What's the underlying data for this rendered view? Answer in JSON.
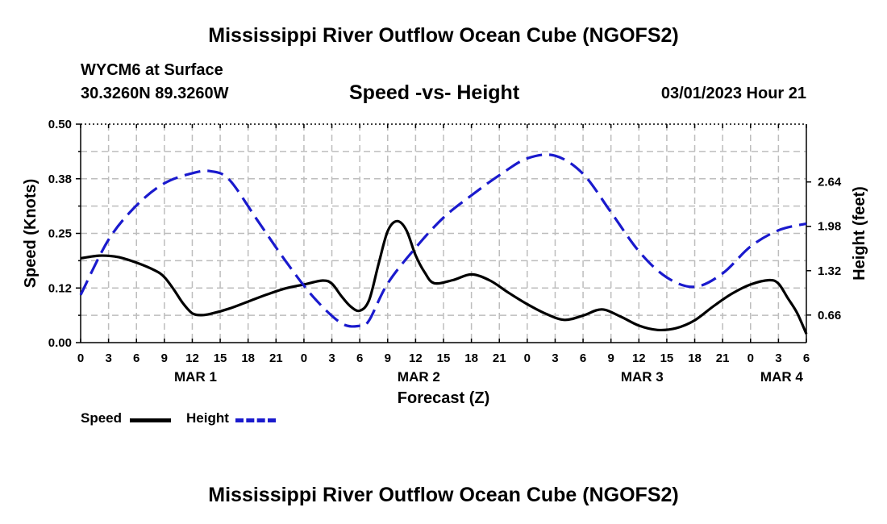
{
  "header": {
    "title": "Mississippi River Outflow Ocean Cube (NGOFS2)",
    "station": "WYCM6 at Surface",
    "coords": "30.3260N  89.3260W",
    "datetime": "03/01/2023 Hour 21"
  },
  "footer": {
    "title": "Mississippi River Outflow Ocean Cube (NGOFS2)"
  },
  "legend": {
    "speed_label": "Speed",
    "height_label": "Height",
    "speed_color": "#000000",
    "height_color": "#1a1acd"
  },
  "chart_data": {
    "type": "line",
    "title": "Speed -vs- Height",
    "xlabel": "Forecast (Z)",
    "ylabel": "Speed (Knots)",
    "y2label": "Height (feet)",
    "x_unit": "hours since MAR 1 00Z",
    "xlim": [
      0,
      78
    ],
    "ylim": [
      0,
      0.5
    ],
    "y2lim": [
      0.25,
      3.5
    ],
    "x_ticks": [
      0,
      3,
      6,
      9,
      12,
      15,
      18,
      21,
      24,
      27,
      30,
      33,
      36,
      39,
      42,
      45,
      48,
      51,
      54,
      57,
      60,
      63,
      66,
      69,
      72,
      75,
      78
    ],
    "x_tick_labels": [
      "0",
      "3",
      "6",
      "9",
      "12",
      "15",
      "18",
      "21",
      "0",
      "3",
      "6",
      "9",
      "12",
      "15",
      "18",
      "21",
      "0",
      "3",
      "6",
      "9",
      "12",
      "15",
      "18",
      "21",
      "0",
      "3",
      "6"
    ],
    "y_ticks": [
      0.0,
      0.125,
      0.25,
      0.375,
      0.5
    ],
    "y_tick_labels": [
      "0.00",
      "0.12",
      "0.25",
      "0.38",
      "0.50"
    ],
    "y2_ticks": [
      0.66,
      1.32,
      1.98,
      2.64
    ],
    "y2_tick_labels": [
      "0.66",
      "1.32",
      "1.98",
      "2.64"
    ],
    "day_labels": [
      {
        "x": 12,
        "label": "MAR 1"
      },
      {
        "x": 36,
        "label": "MAR 2"
      },
      {
        "x": 60,
        "label": "MAR 3"
      },
      {
        "x": 75,
        "label": "MAR 4"
      }
    ],
    "grid": true,
    "series": [
      {
        "name": "Speed",
        "axis": "left",
        "color": "#000000",
        "dash": "solid",
        "x": [
          0,
          2,
          4,
          6,
          8,
          9,
          10,
          11,
          12,
          13,
          14,
          16,
          18,
          20,
          22,
          24,
          26,
          27,
          28,
          29,
          30,
          31,
          32,
          33,
          34,
          35,
          36,
          37,
          38,
          40,
          42,
          44,
          46,
          48,
          50,
          52,
          54,
          56,
          58,
          60,
          62,
          64,
          66,
          68,
          70,
          72,
          74,
          75,
          76,
          77,
          78
        ],
        "values": [
          0.193,
          0.199,
          0.196,
          0.183,
          0.165,
          0.15,
          0.122,
          0.09,
          0.067,
          0.063,
          0.066,
          0.078,
          0.094,
          0.11,
          0.124,
          0.133,
          0.142,
          0.135,
          0.107,
          0.083,
          0.073,
          0.097,
          0.178,
          0.255,
          0.278,
          0.258,
          0.2,
          0.16,
          0.136,
          0.143,
          0.156,
          0.142,
          0.114,
          0.088,
          0.066,
          0.052,
          0.062,
          0.076,
          0.06,
          0.039,
          0.029,
          0.033,
          0.051,
          0.083,
          0.112,
          0.133,
          0.143,
          0.135,
          0.102,
          0.068,
          0.02
        ]
      },
      {
        "name": "Height",
        "axis": "right",
        "color": "#1a1acd",
        "dash": "dashed",
        "x": [
          0,
          3,
          6,
          9,
          12,
          14,
          16,
          19,
          22,
          25,
          28,
          30,
          31,
          33,
          36,
          39,
          42,
          45,
          48,
          51,
          54,
          57,
          60,
          63,
          66,
          69,
          72,
          75,
          78
        ],
        "values": [
          0.96,
          1.78,
          2.29,
          2.62,
          2.77,
          2.8,
          2.67,
          2.07,
          1.47,
          0.93,
          0.54,
          0.5,
          0.58,
          1.13,
          1.66,
          2.11,
          2.44,
          2.74,
          2.99,
          3.03,
          2.76,
          2.19,
          1.61,
          1.22,
          1.08,
          1.28,
          1.68,
          1.92,
          2.02
        ]
      }
    ]
  }
}
